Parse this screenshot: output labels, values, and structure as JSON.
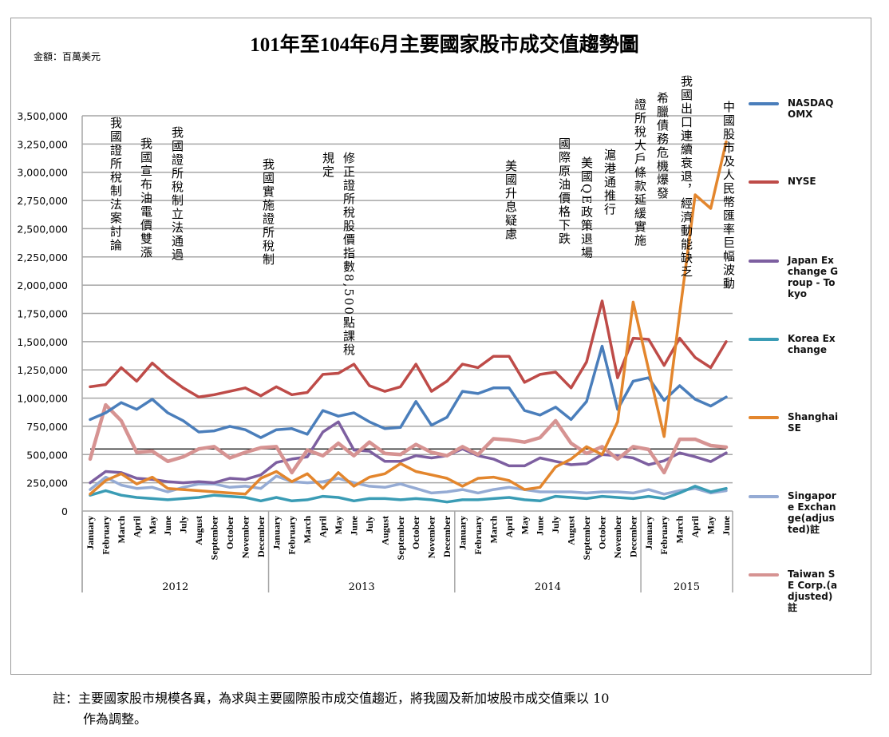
{
  "chart_data": {
    "type": "line",
    "title": "101年至104年6月主要國家股市成交值趨勢圖",
    "unit_label": "金額：百萬美元",
    "ylim": [
      0,
      3500000
    ],
    "yticks": [
      0,
      250000,
      500000,
      750000,
      1000000,
      1250000,
      1500000,
      1750000,
      2000000,
      2250000,
      2500000,
      2750000,
      3000000,
      3250000,
      3500000
    ],
    "ytick_labels": [
      "0",
      "250,000",
      "500,000",
      "750,000",
      "1,000,000",
      "1,250,000",
      "1,500,000",
      "1,750,000",
      "2,000,000",
      "2,250,000",
      "2,500,000",
      "2,750,000",
      "3,000,000",
      "3,250,000",
      "3,500,000"
    ],
    "grid": true,
    "legend_position": "right",
    "reference_line": 550000,
    "months": [
      "January",
      "February",
      "March",
      "April",
      "May",
      "June",
      "July",
      "August",
      "September",
      "October",
      "November",
      "December",
      "January",
      "February",
      "March",
      "April",
      "May",
      "June",
      "July",
      "August",
      "September",
      "October",
      "November",
      "December",
      "January",
      "February",
      "March",
      "April",
      "May",
      "June",
      "July",
      "August",
      "September",
      "October",
      "November",
      "December",
      "January",
      "February",
      "March",
      "April",
      "May",
      "June"
    ],
    "years": [
      {
        "label": "2012",
        "count": 12
      },
      {
        "label": "2013",
        "count": 12
      },
      {
        "label": "2014",
        "count": 12
      },
      {
        "label": "2015",
        "count": 6
      }
    ],
    "series": [
      {
        "name": "NASDAQ OMX",
        "color": "#4a7ebb",
        "values": [
          810000,
          870000,
          960000,
          900000,
          990000,
          870000,
          800000,
          700000,
          710000,
          750000,
          720000,
          650000,
          720000,
          730000,
          680000,
          890000,
          840000,
          870000,
          790000,
          730000,
          740000,
          970000,
          760000,
          830000,
          1060000,
          1040000,
          1090000,
          1090000,
          890000,
          850000,
          920000,
          810000,
          970000,
          1460000,
          900000,
          1150000,
          1180000,
          980000,
          1110000,
          990000,
          930000,
          1010000
        ]
      },
      {
        "name": "NYSE",
        "color": "#be4b48",
        "values": [
          1100000,
          1120000,
          1270000,
          1150000,
          1310000,
          1190000,
          1090000,
          1010000,
          1030000,
          1060000,
          1090000,
          1020000,
          1100000,
          1030000,
          1050000,
          1210000,
          1220000,
          1300000,
          1110000,
          1060000,
          1100000,
          1300000,
          1060000,
          1150000,
          1300000,
          1270000,
          1370000,
          1370000,
          1140000,
          1210000,
          1230000,
          1090000,
          1320000,
          1860000,
          1180000,
          1530000,
          1520000,
          1290000,
          1530000,
          1360000,
          1270000,
          1500000
        ]
      },
      {
        "name": "Japan Exchange Group - Tokyo",
        "color": "#7d5fa0",
        "values": [
          250000,
          350000,
          340000,
          290000,
          280000,
          260000,
          250000,
          260000,
          250000,
          290000,
          280000,
          320000,
          430000,
          460000,
          480000,
          700000,
          790000,
          540000,
          530000,
          440000,
          440000,
          490000,
          470000,
          490000,
          550000,
          490000,
          460000,
          400000,
          400000,
          470000,
          440000,
          410000,
          420000,
          500000,
          490000,
          470000,
          410000,
          445000,
          515000,
          480000,
          438000,
          515000
        ]
      },
      {
        "name": "Korea Exchange",
        "color": "#3a9cb5",
        "values": [
          140000,
          180000,
          140000,
          120000,
          110000,
          100000,
          110000,
          120000,
          140000,
          130000,
          120000,
          90000,
          120000,
          90000,
          100000,
          130000,
          120000,
          90000,
          110000,
          110000,
          100000,
          110000,
          100000,
          80000,
          100000,
          100000,
          110000,
          120000,
          100000,
          90000,
          130000,
          120000,
          110000,
          130000,
          120000,
          110000,
          130000,
          110000,
          160000,
          220000,
          170000,
          200000
        ]
      },
      {
        "name": "Shanghai SE",
        "color": "#e3862d",
        "values": [
          150000,
          270000,
          330000,
          240000,
          300000,
          200000,
          190000,
          180000,
          170000,
          160000,
          150000,
          290000,
          350000,
          260000,
          330000,
          200000,
          340000,
          220000,
          300000,
          330000,
          420000,
          350000,
          320000,
          290000,
          220000,
          290000,
          300000,
          270000,
          190000,
          210000,
          390000,
          460000,
          570000,
          500000,
          790000,
          1850000,
          1250000,
          660000,
          1750000,
          2800000,
          2680000,
          3270000
        ]
      },
      {
        "name": "Singapore Exchange(adjusted)註",
        "color": "#95abd4",
        "values": [
          190000,
          300000,
          230000,
          200000,
          210000,
          170000,
          210000,
          240000,
          240000,
          210000,
          220000,
          200000,
          310000,
          260000,
          250000,
          260000,
          290000,
          250000,
          220000,
          210000,
          240000,
          200000,
          160000,
          170000,
          190000,
          160000,
          190000,
          210000,
          190000,
          170000,
          170000,
          170000,
          160000,
          170000,
          170000,
          160000,
          190000,
          150000,
          180000,
          200000,
          160000,
          180000
        ]
      },
      {
        "name": "Taiwan SE Corp.(adjusted)註",
        "color": "#d69392",
        "values": [
          460000,
          940000,
          800000,
          520000,
          530000,
          440000,
          480000,
          550000,
          570000,
          470000,
          520000,
          560000,
          570000,
          340000,
          540000,
          490000,
          600000,
          490000,
          610000,
          510000,
          500000,
          590000,
          520000,
          490000,
          570000,
          500000,
          640000,
          630000,
          610000,
          650000,
          800000,
          600000,
          510000,
          570000,
          460000,
          570000,
          545000,
          340000,
          636000,
          636000,
          580000,
          566000
        ]
      }
    ]
  },
  "annotations": [
    {
      "lines": [
        "我國證所稅制法案討論"
      ]
    },
    {
      "lines": [
        "我國宣布油電價雙漲"
      ]
    },
    {
      "lines": [
        "我國證所稅制立法通過"
      ]
    },
    {
      "lines": [
        "我國實施證所稅制"
      ]
    },
    {
      "lines": [
        "修正證所稅股價指數8,500點課稅",
        "規定"
      ]
    },
    {
      "lines": [
        "美國升息疑慮"
      ]
    },
    {
      "lines": [
        "國際原油價格下跌"
      ]
    },
    {
      "lines": [
        "美國QE政策退場"
      ]
    },
    {
      "lines": [
        "滬港通推行"
      ]
    },
    {
      "lines": [
        "證所稅大戶條款延緩實施"
      ]
    },
    {
      "lines": [
        "希臘債務危機爆發"
      ]
    },
    {
      "lines": [
        "我國出口連續衰退，經濟動能缺乏"
      ]
    },
    {
      "lines": [
        "中國股市及人民幣匯率巨幅波動"
      ]
    }
  ],
  "footnote": {
    "line1": "註：主要國家股市規模各異，為求與主要國際股市成交值趨近，將我國及新加坡股市成交值乘以 10",
    "line2": "作為調整。"
  }
}
